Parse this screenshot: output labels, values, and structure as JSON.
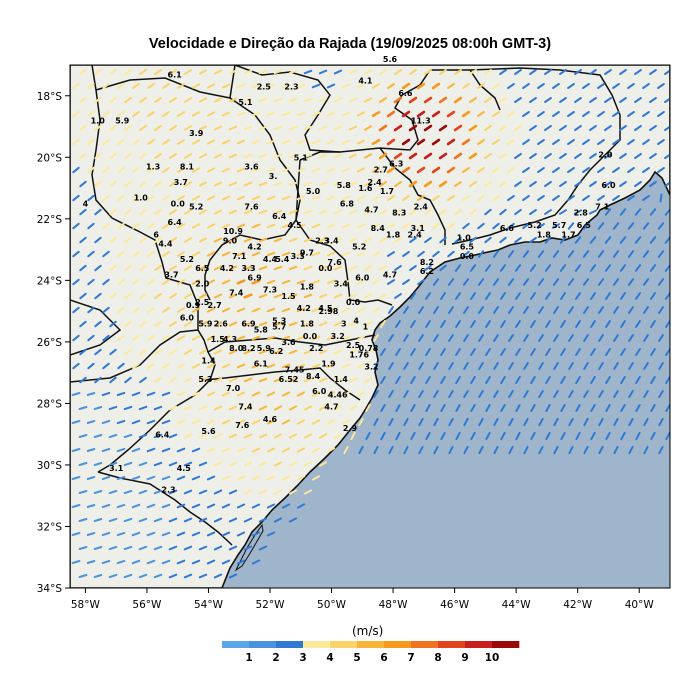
{
  "title": "Velocidade e Direção da Rajada (19/09/2025 08:00h GMT-3)",
  "map": {
    "lon_range": [
      -58.5,
      -39
    ],
    "lat_range": [
      -34,
      -17
    ],
    "ocean_color": "#9fb5cc",
    "land_color": "#efefe9",
    "x_ticks": [
      {
        "lon": -58,
        "label": "58°W"
      },
      {
        "lon": -56,
        "label": "56°W"
      },
      {
        "lon": -54,
        "label": "54°W"
      },
      {
        "lon": -52,
        "label": "52°W"
      },
      {
        "lon": -50,
        "label": "50°W"
      },
      {
        "lon": -48,
        "label": "48°W"
      },
      {
        "lon": -46,
        "label": "46°W"
      },
      {
        "lon": -44,
        "label": "44°W"
      },
      {
        "lon": -42,
        "label": "42°W"
      },
      {
        "lon": -40,
        "label": "40°W"
      }
    ],
    "y_ticks": [
      {
        "lat": -18,
        "label": "18°S"
      },
      {
        "lat": -20,
        "label": "20°S"
      },
      {
        "lat": -22,
        "label": "22°S"
      },
      {
        "lat": -24,
        "label": "24°S"
      },
      {
        "lat": -26,
        "label": "26°S"
      },
      {
        "lat": -28,
        "label": "28°S"
      },
      {
        "lat": -30,
        "label": "30°S"
      },
      {
        "lat": -32,
        "label": "32°S"
      },
      {
        "lat": -34,
        "label": "34°S"
      }
    ]
  },
  "colorbar": {
    "units": "(m/s)",
    "colors": [
      "#5aa6e8",
      "#4a93dc",
      "#2f79d3",
      "#fbe89a",
      "#fad36b",
      "#f8b53a",
      "#f59a1a",
      "#f0731f",
      "#e2421c",
      "#c91e1e",
      "#9b0a0a"
    ],
    "labels": [
      "1",
      "2",
      "3",
      "4",
      "5",
      "6",
      "7",
      "8",
      "9",
      "10"
    ]
  },
  "stations": [
    {
      "lon": -55.1,
      "lat": -17.4,
      "v": "6.1"
    },
    {
      "lon": -52.2,
      "lat": -17.8,
      "v": "2.5"
    },
    {
      "lon": -51.3,
      "lat": -17.8,
      "v": "2.3"
    },
    {
      "lon": -48.9,
      "lat": -17.6,
      "v": "4.1"
    },
    {
      "lon": -48.1,
      "lat": -16.9,
      "v": "5.6"
    },
    {
      "lon": -47.6,
      "lat": -18.0,
      "v": "6.6"
    },
    {
      "lon": -52.8,
      "lat": -18.3,
      "v": "5.1"
    },
    {
      "lon": -57.6,
      "lat": -18.9,
      "v": "1.0"
    },
    {
      "lon": -56.8,
      "lat": -18.9,
      "v": "5.9"
    },
    {
      "lon": -54.4,
      "lat": -19.3,
      "v": "3.9"
    },
    {
      "lon": -47.1,
      "lat": -18.9,
      "v": "11.3"
    },
    {
      "lon": -55.8,
      "lat": -20.4,
      "v": "1.3"
    },
    {
      "lon": -54.7,
      "lat": -20.4,
      "v": "8.1"
    },
    {
      "lon": -52.6,
      "lat": -20.4,
      "v": "3.6"
    },
    {
      "lon": -51.0,
      "lat": -20.1,
      "v": "5.1"
    },
    {
      "lon": -48.4,
      "lat": -20.5,
      "v": "2.7"
    },
    {
      "lon": -47.9,
      "lat": -20.3,
      "v": "6.3"
    },
    {
      "lon": -41.1,
      "lat": -20.0,
      "v": "2.0"
    },
    {
      "lon": -54.9,
      "lat": -20.9,
      "v": "3.7"
    },
    {
      "lon": -51.9,
      "lat": -20.7,
      "v": "3."
    },
    {
      "lon": -49.6,
      "lat": -21.0,
      "v": "5.8"
    },
    {
      "lon": -48.6,
      "lat": -20.9,
      "v": "2.4"
    },
    {
      "lon": -48.9,
      "lat": -21.1,
      "v": "1.6"
    },
    {
      "lon": -41.0,
      "lat": -21.0,
      "v": "6.0"
    },
    {
      "lon": -56.2,
      "lat": -21.4,
      "v": "1.0"
    },
    {
      "lon": -55.0,
      "lat": -21.6,
      "v": "0.0"
    },
    {
      "lon": -50.6,
      "lat": -21.2,
      "v": "5.0"
    },
    {
      "lon": -48.2,
      "lat": -21.2,
      "v": "1.7"
    },
    {
      "lon": -54.4,
      "lat": -21.7,
      "v": "5.2"
    },
    {
      "lon": -52.6,
      "lat": -21.7,
      "v": "7.6"
    },
    {
      "lon": -49.5,
      "lat": -21.6,
      "v": "6.8"
    },
    {
      "lon": -48.7,
      "lat": -21.8,
      "v": "4.7"
    },
    {
      "lon": -47.8,
      "lat": -21.9,
      "v": "8.3"
    },
    {
      "lon": -47.1,
      "lat": -21.7,
      "v": "2.4"
    },
    {
      "lon": -41.2,
      "lat": -21.7,
      "v": "7.1"
    },
    {
      "lon": -58.0,
      "lat": -21.6,
      "v": "4"
    },
    {
      "lon": -51.7,
      "lat": -22.0,
      "v": "6.4"
    },
    {
      "lon": -51.2,
      "lat": -22.3,
      "v": "4.5"
    },
    {
      "lon": -48.5,
      "lat": -22.4,
      "v": "8.4"
    },
    {
      "lon": -47.2,
      "lat": -22.4,
      "v": "3.1"
    },
    {
      "lon": -41.9,
      "lat": -21.9,
      "v": "2.8"
    },
    {
      "lon": -55.1,
      "lat": -22.2,
      "v": "6.4"
    },
    {
      "lon": -55.7,
      "lat": -22.6,
      "v": "6"
    },
    {
      "lon": -53.2,
      "lat": -22.5,
      "v": "10.9"
    },
    {
      "lon": -53.3,
      "lat": -22.8,
      "v": "9.0"
    },
    {
      "lon": -50.3,
      "lat": -22.8,
      "v": "2.3"
    },
    {
      "lon": -50.0,
      "lat": -22.8,
      "v": "3.4"
    },
    {
      "lon": -48.0,
      "lat": -22.6,
      "v": "1.8"
    },
    {
      "lon": -47.3,
      "lat": -22.6,
      "v": "2.4"
    },
    {
      "lon": -45.7,
      "lat": -22.7,
      "v": "1.0"
    },
    {
      "lon": -44.3,
      "lat": -22.4,
      "v": "6.6"
    },
    {
      "lon": -43.4,
      "lat": -22.3,
      "v": "5.2"
    },
    {
      "lon": -42.6,
      "lat": -22.3,
      "v": "5.7"
    },
    {
      "lon": -41.8,
      "lat": -22.3,
      "v": "6.5"
    },
    {
      "lon": -43.1,
      "lat": -22.6,
      "v": "1.8"
    },
    {
      "lon": -42.3,
      "lat": -22.6,
      "v": "1.7"
    },
    {
      "lon": -55.4,
      "lat": -22.9,
      "v": "4.4"
    },
    {
      "lon": -52.5,
      "lat": -23.0,
      "v": "4.2"
    },
    {
      "lon": -50.8,
      "lat": -23.2,
      "v": "9.7"
    },
    {
      "lon": -49.1,
      "lat": -23.0,
      "v": "5.2"
    },
    {
      "lon": -45.6,
      "lat": -23.0,
      "v": "6.5"
    },
    {
      "lon": -45.6,
      "lat": -23.3,
      "v": "0.0"
    },
    {
      "lon": -54.7,
      "lat": -23.4,
      "v": "5.2"
    },
    {
      "lon": -53.0,
      "lat": -23.3,
      "v": "7.1"
    },
    {
      "lon": -52.0,
      "lat": -23.4,
      "v": "4.4"
    },
    {
      "lon": -51.6,
      "lat": -23.4,
      "v": "5.4"
    },
    {
      "lon": -51.1,
      "lat": -23.3,
      "v": "3.3"
    },
    {
      "lon": -49.9,
      "lat": -23.5,
      "v": "7.6"
    },
    {
      "lon": -46.9,
      "lat": -23.5,
      "v": "8.2"
    },
    {
      "lon": -54.2,
      "lat": -23.7,
      "v": "6.5"
    },
    {
      "lon": -53.4,
      "lat": -23.7,
      "v": "4.2"
    },
    {
      "lon": -52.7,
      "lat": -23.7,
      "v": "3.3"
    },
    {
      "lon": -50.2,
      "lat": -23.7,
      "v": "0.0"
    },
    {
      "lon": -46.9,
      "lat": -23.8,
      "v": "6.2"
    },
    {
      "lon": -55.2,
      "lat": -23.9,
      "v": "3.7"
    },
    {
      "lon": -52.5,
      "lat": -24.0,
      "v": "6.9"
    },
    {
      "lon": -48.1,
      "lat": -23.9,
      "v": "4.7"
    },
    {
      "lon": -49.0,
      "lat": -24.0,
      "v": "6.0"
    },
    {
      "lon": -54.2,
      "lat": -24.2,
      "v": "2.0"
    },
    {
      "lon": -50.8,
      "lat": -24.3,
      "v": "1.8"
    },
    {
      "lon": -49.7,
      "lat": -24.2,
      "v": "3.4"
    },
    {
      "lon": -53.1,
      "lat": -24.5,
      "v": "7.4"
    },
    {
      "lon": -52.0,
      "lat": -24.4,
      "v": "7.3"
    },
    {
      "lon": -51.4,
      "lat": -24.6,
      "v": "1.5"
    },
    {
      "lon": -54.2,
      "lat": -24.8,
      "v": "2.5"
    },
    {
      "lon": -53.8,
      "lat": -24.9,
      "v": "2.7"
    },
    {
      "lon": -54.5,
      "lat": -24.9,
      "v": "0.9"
    },
    {
      "lon": -50.9,
      "lat": -25.0,
      "v": "4.2"
    },
    {
      "lon": -50.2,
      "lat": -25.0,
      "v": "4.5"
    },
    {
      "lon": -50.1,
      "lat": -25.1,
      "v": "2.98"
    },
    {
      "lon": -49.3,
      "lat": -24.8,
      "v": "0.0"
    },
    {
      "lon": -54.7,
      "lat": -25.3,
      "v": "6.0"
    },
    {
      "lon": -54.1,
      "lat": -25.5,
      "v": "5.9"
    },
    {
      "lon": -53.6,
      "lat": -25.5,
      "v": "2.6"
    },
    {
      "lon": -52.7,
      "lat": -25.5,
      "v": "6.9"
    },
    {
      "lon": -51.7,
      "lat": -25.4,
      "v": "5.3"
    },
    {
      "lon": -51.7,
      "lat": -25.6,
      "v": "5.7"
    },
    {
      "lon": -52.3,
      "lat": -25.7,
      "v": "5.8"
    },
    {
      "lon": -50.8,
      "lat": -25.5,
      "v": "1.8"
    },
    {
      "lon": -49.2,
      "lat": -25.4,
      "v": "4"
    },
    {
      "lon": -48.9,
      "lat": -25.6,
      "v": "1"
    },
    {
      "lon": -49.6,
      "lat": -25.5,
      "v": "3"
    },
    {
      "lon": -50.7,
      "lat": -25.9,
      "v": "0.0"
    },
    {
      "lon": -49.8,
      "lat": -25.9,
      "v": "3.2"
    },
    {
      "lon": -53.7,
      "lat": -26.0,
      "v": "1.5"
    },
    {
      "lon": -53.3,
      "lat": -26.0,
      "v": "4.3"
    },
    {
      "lon": -51.4,
      "lat": -26.1,
      "v": "3.6"
    },
    {
      "lon": -53.1,
      "lat": -26.3,
      "v": "8.0"
    },
    {
      "lon": -52.7,
      "lat": -26.3,
      "v": "8.2"
    },
    {
      "lon": -52.2,
      "lat": -26.3,
      "v": "5.9"
    },
    {
      "lon": -51.8,
      "lat": -26.4,
      "v": "6.2"
    },
    {
      "lon": -50.5,
      "lat": -26.3,
      "v": "2.2"
    },
    {
      "lon": -49.3,
      "lat": -26.2,
      "v": "2.5"
    },
    {
      "lon": -48.8,
      "lat": -26.3,
      "v": "0.78"
    },
    {
      "lon": -49.1,
      "lat": -26.5,
      "v": "1.76"
    },
    {
      "lon": -54.0,
      "lat": -26.7,
      "v": "1.4"
    },
    {
      "lon": -52.3,
      "lat": -26.8,
      "v": "6.1"
    },
    {
      "lon": -51.2,
      "lat": -27.0,
      "v": "7.45"
    },
    {
      "lon": -50.1,
      "lat": -26.8,
      "v": "1.9"
    },
    {
      "lon": -48.7,
      "lat": -26.9,
      "v": "3.2"
    },
    {
      "lon": -51.4,
      "lat": -27.3,
      "v": "6.52"
    },
    {
      "lon": -50.6,
      "lat": -27.2,
      "v": "8.4"
    },
    {
      "lon": -49.7,
      "lat": -27.3,
      "v": "1.4"
    },
    {
      "lon": -54.1,
      "lat": -27.3,
      "v": "5.3"
    },
    {
      "lon": -53.2,
      "lat": -27.6,
      "v": "7.0"
    },
    {
      "lon": -50.4,
      "lat": -27.7,
      "v": "6.0"
    },
    {
      "lon": -49.8,
      "lat": -27.8,
      "v": "4.46"
    },
    {
      "lon": -52.8,
      "lat": -28.2,
      "v": "7.4"
    },
    {
      "lon": -50.0,
      "lat": -28.2,
      "v": "4.7"
    },
    {
      "lon": -52.0,
      "lat": -28.6,
      "v": "4.6"
    },
    {
      "lon": -52.9,
      "lat": -28.8,
      "v": "7.6"
    },
    {
      "lon": -49.4,
      "lat": -28.9,
      "v": "2.9"
    },
    {
      "lon": -55.5,
      "lat": -29.1,
      "v": "6.4"
    },
    {
      "lon": -54.0,
      "lat": -29.0,
      "v": "5.6"
    },
    {
      "lon": -57.0,
      "lat": -30.2,
      "v": "3.1"
    },
    {
      "lon": -54.8,
      "lat": -30.2,
      "v": "4.5"
    },
    {
      "lon": -55.3,
      "lat": -30.9,
      "v": "2.3"
    }
  ]
}
